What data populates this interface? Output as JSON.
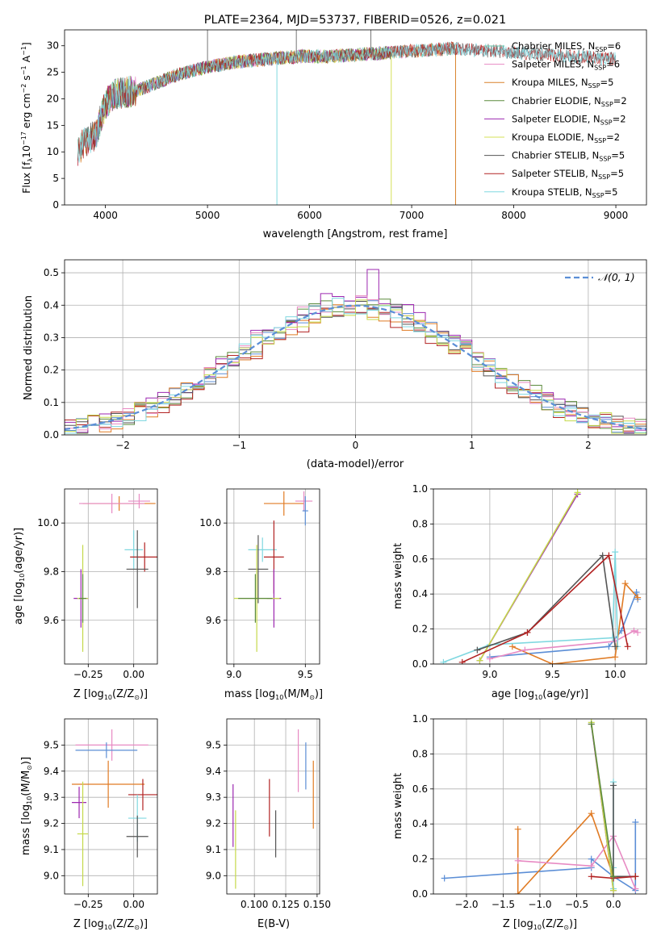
{
  "chart_data": [
    {
      "id": "spectrum",
      "type": "line",
      "title": "PLATE=2364, MJD=53737, FIBERID=0526, z=0.021",
      "xlabel": "wavelength [Angstrom, rest frame]",
      "ylabel": "Flux [f",
      "ylabel_sub": "λ",
      "ylabel_rest": "10",
      "ylabel_exp": "−17",
      "ylabel_units": " erg cm",
      "ylabel_exp2": "−2",
      "ylabel_units2": " s",
      "ylabel_exp3": "−1",
      "ylabel_units3": " A",
      "ylabel_exp4": "−1",
      "ylabel_end": "]",
      "xlim": [
        3600,
        9300
      ],
      "ylim": [
        0,
        33
      ],
      "xticks": [
        4000,
        5000,
        6000,
        7000,
        8000,
        9000
      ],
      "yticks": [
        0,
        5,
        10,
        15,
        20,
        25,
        30
      ],
      "legend_position": "top-right",
      "continuum_x": [
        3730,
        3800,
        3900,
        4000,
        4100,
        4300,
        4500,
        4700,
        5000,
        5300,
        5600,
        5900,
        6200,
        6600,
        7000,
        7400,
        7800,
        8200,
        8600,
        9000
      ],
      "continuum_y": [
        10,
        12,
        13,
        19,
        21,
        21.5,
        23,
        24.5,
        26,
        27,
        27.5,
        28,
        28,
        28.5,
        29,
        29.5,
        29,
        28.5,
        28,
        27.5
      ],
      "series": [
        {
          "name": "Chabrier MILES, N",
          "sub": "SSP",
          "rest": "=6",
          "color": "#66c2a5",
          "x_range": [
            3730,
            7400
          ],
          "drop": null
        },
        {
          "name": "Salpeter MILES, N",
          "sub": "SSP",
          "rest": "=6",
          "color": "#e78ac3",
          "x_range": [
            3730,
            7400
          ],
          "drop": null
        },
        {
          "name": "Kroupa MILES, N",
          "sub": "SSP",
          "rest": "=5",
          "color": "#d9822b",
          "x_range": [
            3730,
            7430
          ],
          "drop": 7430
        },
        {
          "name": "Chabrier ELODIE, N",
          "sub": "SSP",
          "rest": "=2",
          "color": "#5c8a3d",
          "x_range": [
            3900,
            6800
          ],
          "drop": null
        },
        {
          "name": "Salpeter ELODIE, N",
          "sub": "SSP",
          "rest": "=2",
          "color": "#9c27b0",
          "x_range": [
            3900,
            6800
          ],
          "drop": null
        },
        {
          "name": "Kroupa ELODIE, N",
          "sub": "SSP",
          "rest": "=2",
          "color": "#d4e157",
          "x_range": [
            3890,
            6800
          ],
          "drop": 6800
        },
        {
          "name": "Chabrier STELIB, N",
          "sub": "SSP",
          "rest": "=5",
          "color": "#555555",
          "x_range": [
            3730,
            9000
          ],
          "drop": null
        },
        {
          "name": "Salpeter STELIB, N",
          "sub": "SSP",
          "rest": "=5",
          "color": "#b22222",
          "x_range": [
            3730,
            9000
          ],
          "drop": null
        },
        {
          "name": "Kroupa STELIB, N",
          "sub": "SSP",
          "rest": "=5",
          "color": "#80d8e0",
          "x_range": [
            3730,
            9000
          ],
          "drop": 5680
        }
      ]
    },
    {
      "id": "residuals",
      "type": "histogram",
      "xlabel": "(data-model)/error",
      "ylabel": "Normed distribution",
      "xlim": [
        -2.5,
        2.5
      ],
      "ylim": [
        0,
        0.54
      ],
      "xticks": [
        -2,
        -1,
        0,
        1,
        2
      ],
      "xtick_labels": [
        "−2",
        "−1",
        "0",
        "1",
        "2"
      ],
      "yticks": [
        0.0,
        0.1,
        0.2,
        0.3,
        0.4,
        0.5
      ],
      "ytick_labels": [
        "0.0",
        "0.1",
        "0.2",
        "0.3",
        "0.4",
        "0.5"
      ],
      "legend_label": "𝒩(0, 1)",
      "legend_position": "top-right",
      "normal_color": "#5b8ed6",
      "bin_width": 0.1,
      "series": [
        {
          "color": "#5b8ed6",
          "peak": 0.4,
          "noise_seed": 1
        },
        {
          "color": "#e07b24",
          "peak": 0.39,
          "noise_seed": 2
        },
        {
          "color": "#5c8a3d",
          "peak": 0.41,
          "noise_seed": 3
        },
        {
          "color": "#b22222",
          "peak": 0.38,
          "noise_seed": 4
        },
        {
          "color": "#9c27b0",
          "peak": 0.42,
          "noise_seed": 5
        },
        {
          "color": "#555555",
          "peak": 0.4,
          "noise_seed": 6
        },
        {
          "color": "#e78ac3",
          "peak": 0.41,
          "noise_seed": 7
        },
        {
          "color": "#c5d94a",
          "peak": 0.39,
          "noise_seed": 8
        },
        {
          "color": "#80d8e0",
          "peak": 0.4,
          "noise_seed": 9
        }
      ]
    },
    {
      "id": "age-vs-Z",
      "type": "errorbar",
      "xlabel": "Z [log",
      "xlabel_sub": "10",
      "xlabel_rest": "(Z/Z",
      "xlabel_sub2": "⊙",
      "xlabel_end": ")]",
      "ylabel": "age  [log",
      "ylabel_sub": "10",
      "ylabel_rest": "(age/yr)]",
      "xlim": [
        -0.38,
        0.13
      ],
      "ylim": [
        9.42,
        10.14
      ],
      "xticks": [
        -0.25,
        0.0
      ],
      "xtick_labels": [
        "−0.25",
        "0.00"
      ],
      "yticks": [
        9.6,
        9.8,
        10.0
      ],
      "ytick_labels": [
        "9.6",
        "9.8",
        "10.0"
      ],
      "points": [
        {
          "x": -0.08,
          "y": 10.08,
          "xerr": 0.2,
          "yerr": 0.03,
          "color": "#e07b24"
        },
        {
          "x": -0.12,
          "y": 10.08,
          "xerr": 0.18,
          "yerr": 0.04,
          "color": "#e78ac3"
        },
        {
          "x": 0.03,
          "y": 10.09,
          "xerr": 0.06,
          "yerr": 0.03,
          "color": "#e78ac3"
        },
        {
          "x": 0.0,
          "y": 9.89,
          "xerr": 0.05,
          "yerr": 0.08,
          "color": "#80d8e0"
        },
        {
          "x": 0.06,
          "y": 9.86,
          "xerr": 0.08,
          "yerr": 0.06,
          "color": "#b22222"
        },
        {
          "x": 0.02,
          "y": 9.81,
          "xerr": 0.06,
          "yerr": 0.16,
          "color": "#555555"
        },
        {
          "x": -0.29,
          "y": 9.69,
          "xerr": 0.04,
          "yerr": 0.12,
          "color": "#9c27b0"
        },
        {
          "x": -0.28,
          "y": 9.69,
          "xerr": 0.03,
          "yerr": 0.22,
          "color": "#c5d94a"
        },
        {
          "x": -0.28,
          "y": 9.69,
          "xerr": 0.02,
          "yerr": 0.1,
          "color": "#5c8a3d"
        }
      ]
    },
    {
      "id": "age-vs-mass",
      "type": "errorbar",
      "xlabel": "mass [log",
      "xlabel_sub": "10",
      "xlabel_rest": "(M/M",
      "xlabel_sub2": "⊙",
      "xlabel_end": ")]",
      "xlim": [
        8.95,
        9.6
      ],
      "ylim": [
        9.42,
        10.14
      ],
      "xticks": [
        9.0,
        9.5
      ],
      "xtick_labels": [
        "9.0",
        "9.5"
      ],
      "yticks": [
        9.6,
        9.8,
        10.0
      ],
      "ytick_labels": [
        "9.6",
        "9.8",
        "10.0"
      ],
      "points": [
        {
          "x": 9.35,
          "y": 10.08,
          "xerr": 0.14,
          "yerr": 0.05,
          "color": "#e07b24"
        },
        {
          "x": 9.49,
          "y": 10.09,
          "xerr": 0.06,
          "yerr": 0.04,
          "color": "#e78ac3"
        },
        {
          "x": 9.5,
          "y": 10.05,
          "xerr": 0.02,
          "yerr": 0.06,
          "color": "#5b8ed6"
        },
        {
          "x": 9.2,
          "y": 9.89,
          "xerr": 0.1,
          "yerr": 0.05,
          "color": "#80d8e0"
        },
        {
          "x": 9.28,
          "y": 9.86,
          "xerr": 0.07,
          "yerr": 0.15,
          "color": "#b22222"
        },
        {
          "x": 9.17,
          "y": 9.81,
          "xerr": 0.07,
          "yerr": 0.14,
          "color": "#555555"
        },
        {
          "x": 9.28,
          "y": 9.69,
          "xerr": 0.05,
          "yerr": 0.12,
          "color": "#9c27b0"
        },
        {
          "x": 9.16,
          "y": 9.69,
          "xerr": 0.16,
          "yerr": 0.22,
          "color": "#c5d94a"
        },
        {
          "x": 9.15,
          "y": 9.69,
          "xerr": 0.12,
          "yerr": 0.1,
          "color": "#5c8a3d"
        }
      ]
    },
    {
      "id": "weight-vs-age",
      "type": "line",
      "xlabel": "age  [log",
      "xlabel_sub": "10",
      "xlabel_rest": "(age/yr)]",
      "ylabel": "mass weight",
      "xlim": [
        8.55,
        10.25
      ],
      "ylim": [
        0,
        1.0
      ],
      "xticks": [
        9.0,
        9.5,
        10.0
      ],
      "xtick_labels": [
        "9.0",
        "9.5",
        "10.0"
      ],
      "yticks": [
        0.0,
        0.2,
        0.4,
        0.6,
        0.8,
        1.0
      ],
      "ytick_labels": [
        "0.0",
        "0.2",
        "0.4",
        "0.6",
        "0.8",
        "1.0"
      ],
      "series": [
        {
          "color": "#5b8ed6",
          "x": [
            9.0,
            9.95,
            10.05,
            10.17,
            10.18
          ],
          "y": [
            0.04,
            0.1,
            0.19,
            0.41,
            0.37
          ]
        },
        {
          "color": "#e07b24",
          "x": [
            9.18,
            9.5,
            10.0,
            10.08,
            10.18
          ],
          "y": [
            0.1,
            0.0,
            0.04,
            0.46,
            0.38
          ]
        },
        {
          "color": "#e78ac3",
          "x": [
            9.0,
            9.28,
            10.0,
            10.15,
            10.18
          ],
          "y": [
            0.03,
            0.08,
            0.13,
            0.19,
            0.18
          ]
        },
        {
          "color": "#80d8e0",
          "x": [
            8.63,
            9.0,
            9.98,
            10.0,
            10.02
          ],
          "y": [
            0.01,
            0.11,
            0.15,
            0.64,
            0.1
          ]
        },
        {
          "color": "#9c27b0",
          "x": [
            8.92,
            9.7
          ],
          "y": [
            0.02,
            0.97
          ]
        },
        {
          "color": "#c5d94a",
          "x": [
            8.92,
            9.7
          ],
          "y": [
            0.02,
            0.98
          ]
        },
        {
          "color": "#555555",
          "x": [
            8.9,
            9.3,
            9.9,
            10.0
          ],
          "y": [
            0.08,
            0.18,
            0.62,
            0.1
          ]
        },
        {
          "color": "#b22222",
          "x": [
            8.78,
            9.3,
            9.95,
            10.1
          ],
          "y": [
            0.01,
            0.18,
            0.62,
            0.1
          ]
        }
      ]
    },
    {
      "id": "mass-vs-Z",
      "type": "errorbar",
      "xlabel": "Z [log",
      "xlabel_sub": "10",
      "xlabel_rest": "(Z/Z",
      "xlabel_sub2": "⊙",
      "xlabel_end": ")]",
      "ylabel": "mass [log",
      "ylabel_sub": "10",
      "ylabel_rest": "(M/M",
      "ylabel_sub2": "⊙",
      "ylabel_end": ")]",
      "xlim": [
        -0.38,
        0.13
      ],
      "ylim": [
        8.93,
        9.6
      ],
      "xticks": [
        -0.25,
        0.0
      ],
      "xtick_labels": [
        "−0.25",
        "0.00"
      ],
      "yticks": [
        9.0,
        9.1,
        9.2,
        9.3,
        9.4,
        9.5
      ],
      "ytick_labels": [
        "9.0",
        "9.1",
        "9.2",
        "9.3",
        "9.4",
        "9.5"
      ],
      "points": [
        {
          "x": -0.12,
          "y": 9.5,
          "xerr": 0.2,
          "yerr": 0.06,
          "color": "#e78ac3"
        },
        {
          "x": -0.15,
          "y": 9.48,
          "xerr": 0.17,
          "yerr": 0.03,
          "color": "#5b8ed6"
        },
        {
          "x": -0.14,
          "y": 9.35,
          "xerr": 0.2,
          "yerr": 0.09,
          "color": "#e07b24"
        },
        {
          "x": 0.05,
          "y": 9.31,
          "xerr": 0.08,
          "yerr": 0.06,
          "color": "#b22222"
        },
        {
          "x": -0.3,
          "y": 9.28,
          "xerr": 0.04,
          "yerr": 0.06,
          "color": "#9c27b0"
        },
        {
          "x": 0.02,
          "y": 9.22,
          "xerr": 0.05,
          "yerr": 0.09,
          "color": "#80d8e0"
        },
        {
          "x": -0.28,
          "y": 9.16,
          "xerr": 0.03,
          "yerr": 0.2,
          "color": "#c5d94a"
        },
        {
          "x": 0.02,
          "y": 9.15,
          "xerr": 0.06,
          "yerr": 0.08,
          "color": "#555555"
        }
      ]
    },
    {
      "id": "mass-vs-EBV",
      "type": "errorbar",
      "xlabel": "E(B-V)",
      "xlim": [
        0.078,
        0.152
      ],
      "ylim": [
        8.93,
        9.6
      ],
      "xticks": [
        0.1,
        0.125,
        0.15
      ],
      "xtick_labels": [
        "0.100",
        "0.125",
        "0.150"
      ],
      "yticks": [
        9.0,
        9.1,
        9.2,
        9.3,
        9.4,
        9.5
      ],
      "ytick_labels": [
        "9.0",
        "9.1",
        "9.2",
        "9.3",
        "9.4",
        "9.5"
      ],
      "points": [
        {
          "x": 0.135,
          "y": 9.44,
          "xerr": 0.0,
          "yerr": 0.12,
          "color": "#e78ac3"
        },
        {
          "x": 0.141,
          "y": 9.42,
          "xerr": 0.0,
          "yerr": 0.09,
          "color": "#5b8ed6"
        },
        {
          "x": 0.147,
          "y": 9.31,
          "xerr": 0.0,
          "yerr": 0.13,
          "color": "#e07b24"
        },
        {
          "x": 0.112,
          "y": 9.26,
          "xerr": 0.0,
          "yerr": 0.11,
          "color": "#b22222"
        },
        {
          "x": 0.083,
          "y": 9.23,
          "xerr": 0.0,
          "yerr": 0.12,
          "color": "#9c27b0"
        },
        {
          "x": 0.117,
          "y": 9.16,
          "xerr": 0.0,
          "yerr": 0.09,
          "color": "#555555"
        },
        {
          "x": 0.085,
          "y": 9.1,
          "xerr": 0.0,
          "yerr": 0.15,
          "color": "#c5d94a"
        }
      ]
    },
    {
      "id": "weight-vs-Z",
      "type": "line",
      "xlabel": "Z [log",
      "xlabel_sub": "10",
      "xlabel_rest": "(Z/Z",
      "xlabel_sub2": "⊙",
      "xlabel_end": ")]",
      "ylabel": "mass weight",
      "xlim": [
        -2.45,
        0.45
      ],
      "ylim": [
        0,
        1.0
      ],
      "xticks": [
        -2.0,
        -1.5,
        -1.0,
        -0.5,
        0.0
      ],
      "xtick_labels": [
        "−2.0",
        "−1.5",
        "−1.0",
        "−0.5",
        "0.0"
      ],
      "yticks": [
        0.0,
        0.2,
        0.4,
        0.6,
        0.8,
        1.0
      ],
      "ytick_labels": [
        "0.0",
        "0.2",
        "0.4",
        "0.6",
        "0.8",
        "1.0"
      ],
      "series": [
        {
          "color": "#5b8ed6",
          "x": [
            -2.3,
            -0.3,
            -0.3,
            0.0,
            0.3,
            0.3
          ],
          "y": [
            0.09,
            0.15,
            0.2,
            0.1,
            0.02,
            0.41
          ]
        },
        {
          "color": "#e07b24",
          "x": [
            -1.3,
            -1.3,
            -0.3,
            0.0,
            0.3
          ],
          "y": [
            0.37,
            0.0,
            0.46,
            0.1,
            0.1
          ]
        },
        {
          "color": "#e78ac3",
          "x": [
            -1.3,
            -0.3,
            0.0,
            0.3
          ],
          "y": [
            0.19,
            0.16,
            0.33,
            0.03
          ]
        },
        {
          "color": "#80d8e0",
          "x": [
            0.0,
            0.0,
            0.0
          ],
          "y": [
            0.64,
            0.15,
            0.03
          ]
        },
        {
          "color": "#9c27b0",
          "x": [
            -0.3,
            0.0
          ],
          "y": [
            0.97,
            0.02
          ]
        },
        {
          "color": "#c5d94a",
          "x": [
            -0.3,
            0.0
          ],
          "y": [
            0.98,
            0.02
          ]
        },
        {
          "color": "#555555",
          "x": [
            0.0,
            0.0,
            0.3
          ],
          "y": [
            0.62,
            0.1,
            0.1
          ]
        },
        {
          "color": "#b22222",
          "x": [
            -0.3,
            0.0,
            0.3
          ],
          "y": [
            0.1,
            0.09,
            0.1
          ]
        },
        {
          "color": "#5c8a3d",
          "x": [
            -0.3,
            0.0
          ],
          "y": [
            0.97,
            0.1
          ]
        }
      ]
    }
  ]
}
